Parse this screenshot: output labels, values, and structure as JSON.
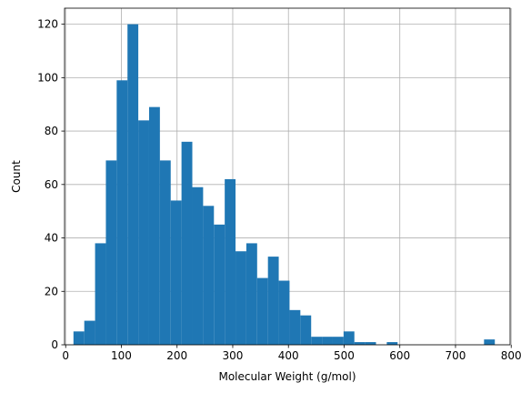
{
  "chart_data": {
    "type": "bar",
    "subtype": "histogram",
    "title": "",
    "xlabel": "Molecular Weight (g/mol)",
    "ylabel": "Count",
    "xlim": [
      -2,
      798
    ],
    "ylim": [
      0,
      126
    ],
    "xticks": [
      0,
      100,
      200,
      300,
      400,
      500,
      600,
      700,
      800
    ],
    "yticks": [
      0,
      20,
      40,
      60,
      80,
      100,
      120
    ],
    "grid": true,
    "bar_color": "#1f77b4",
    "bin_edges": [
      14.0,
      33.4,
      52.8,
      72.2,
      91.6,
      111.0,
      130.4,
      149.8,
      169.2,
      188.6,
      208.0,
      227.4,
      246.8,
      266.2,
      285.6,
      305.0,
      324.4,
      343.8,
      363.2,
      382.6,
      402.0,
      421.4,
      440.8,
      460.2,
      479.6,
      499.0,
      518.4,
      537.8,
      557.2,
      576.6,
      596.0,
      615.4,
      634.8,
      654.2,
      673.6,
      693.0,
      712.4,
      731.8,
      751.2,
      770.6,
      790.0
    ],
    "counts": [
      5,
      9,
      38,
      69,
      99,
      120,
      84,
      89,
      69,
      54,
      76,
      59,
      52,
      45,
      62,
      35,
      38,
      25,
      33,
      24,
      13,
      11,
      3,
      3,
      3,
      5,
      1,
      1,
      0,
      1,
      0,
      0,
      0,
      0,
      0,
      0,
      0,
      0,
      2,
      0
    ]
  }
}
